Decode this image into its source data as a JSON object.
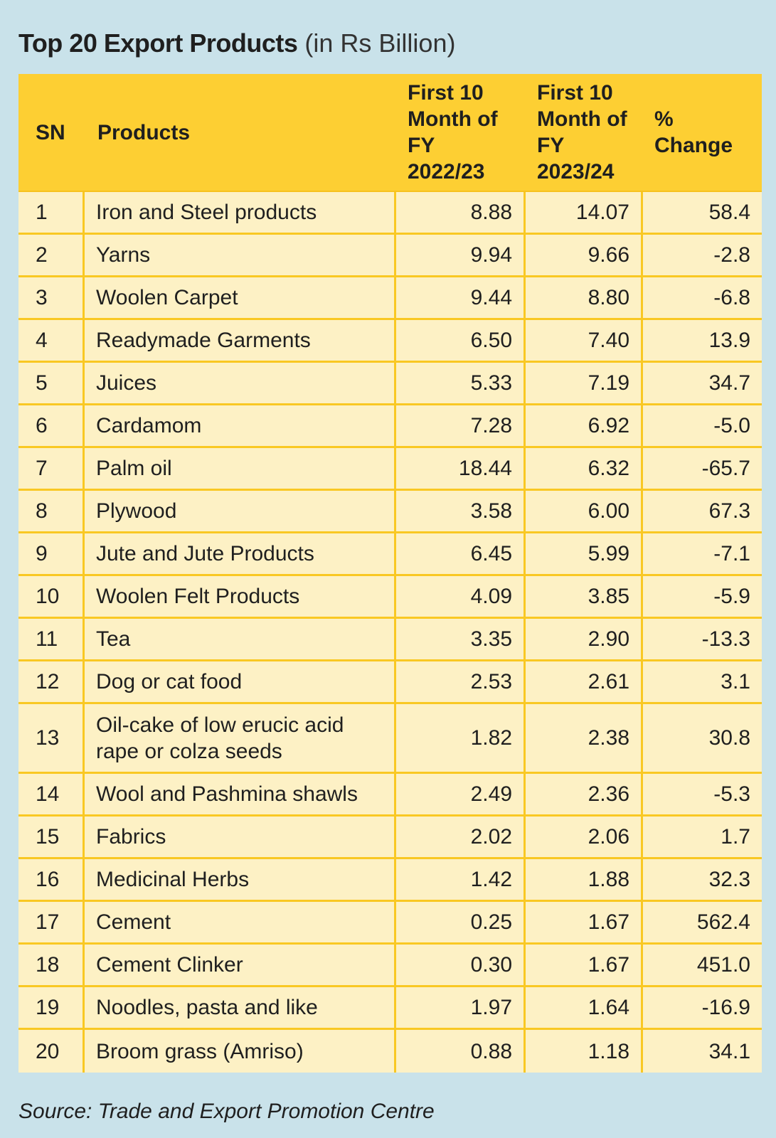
{
  "title": {
    "main": "Top 20 Export Products",
    "unit": "(in Rs Billion)"
  },
  "columns": {
    "sn": "SN",
    "product": "Products",
    "fy2223": "First 10 Month of FY 2022/23",
    "fy2324": "First 10 Month of FY 2023/24",
    "change": "% Change"
  },
  "source": "Source: Trade and Export Promotion Centre",
  "colors": {
    "background": "#c9e2ea",
    "header": "#fdcf33",
    "row": "#fdf1c5",
    "rule": "#f9c823"
  },
  "chart_data": {
    "type": "table",
    "title": "Top 20 Export Products (in Rs Billion)",
    "columns": [
      "SN",
      "Products",
      "First 10 Month of FY 2022/23",
      "First 10 Month of FY 2023/24",
      "% Change"
    ],
    "rows": [
      {
        "sn": "1",
        "product": "Iron and Steel products",
        "fy2223": "8.88",
        "fy2324": "14.07",
        "change": "58.4"
      },
      {
        "sn": "2",
        "product": "Yarns",
        "fy2223": "9.94",
        "fy2324": "9.66",
        "change": "-2.8"
      },
      {
        "sn": "3",
        "product": "Woolen Carpet",
        "fy2223": "9.44",
        "fy2324": "8.80",
        "change": "-6.8"
      },
      {
        "sn": "4",
        "product": "Readymade Garments",
        "fy2223": "6.50",
        "fy2324": "7.40",
        "change": "13.9"
      },
      {
        "sn": "5",
        "product": "Juices",
        "fy2223": "5.33",
        "fy2324": "7.19",
        "change": "34.7"
      },
      {
        "sn": "6",
        "product": "Cardamom",
        "fy2223": "7.28",
        "fy2324": "6.92",
        "change": "-5.0"
      },
      {
        "sn": "7",
        "product": "Palm oil",
        "fy2223": "18.44",
        "fy2324": "6.32",
        "change": "-65.7"
      },
      {
        "sn": "8",
        "product": "Plywood",
        "fy2223": "3.58",
        "fy2324": "6.00",
        "change": "67.3"
      },
      {
        "sn": "9",
        "product": "Jute and Jute Products",
        "fy2223": "6.45",
        "fy2324": "5.99",
        "change": "-7.1"
      },
      {
        "sn": "10",
        "product": "Woolen Felt Products",
        "fy2223": "4.09",
        "fy2324": "3.85",
        "change": "-5.9"
      },
      {
        "sn": "11",
        "product": "Tea",
        "fy2223": "3.35",
        "fy2324": "2.90",
        "change": "-13.3"
      },
      {
        "sn": "12",
        "product": "Dog or cat food",
        "fy2223": "2.53",
        "fy2324": "2.61",
        "change": "3.1"
      },
      {
        "sn": "13",
        "product": "Oil-cake of low erucic acid rape or colza seeds",
        "fy2223": "1.82",
        "fy2324": "2.38",
        "change": "30.8"
      },
      {
        "sn": "14",
        "product": "Wool and Pashmina shawls",
        "fy2223": "2.49",
        "fy2324": "2.36",
        "change": "-5.3"
      },
      {
        "sn": "15",
        "product": "Fabrics",
        "fy2223": "2.02",
        "fy2324": "2.06",
        "change": "1.7"
      },
      {
        "sn": "16",
        "product": "Medicinal Herbs",
        "fy2223": "1.42",
        "fy2324": "1.88",
        "change": "32.3"
      },
      {
        "sn": "17",
        "product": "Cement",
        "fy2223": "0.25",
        "fy2324": "1.67",
        "change": "562.4"
      },
      {
        "sn": "18",
        "product": "Cement Clinker",
        "fy2223": "0.30",
        "fy2324": "1.67",
        "change": "451.0"
      },
      {
        "sn": "19",
        "product": "Noodles, pasta and like",
        "fy2223": "1.97",
        "fy2324": "1.64",
        "change": "-16.9"
      },
      {
        "sn": "20",
        "product": "Broom grass (Amriso)",
        "fy2223": "0.88",
        "fy2324": "1.18",
        "change": "34.1"
      }
    ]
  }
}
